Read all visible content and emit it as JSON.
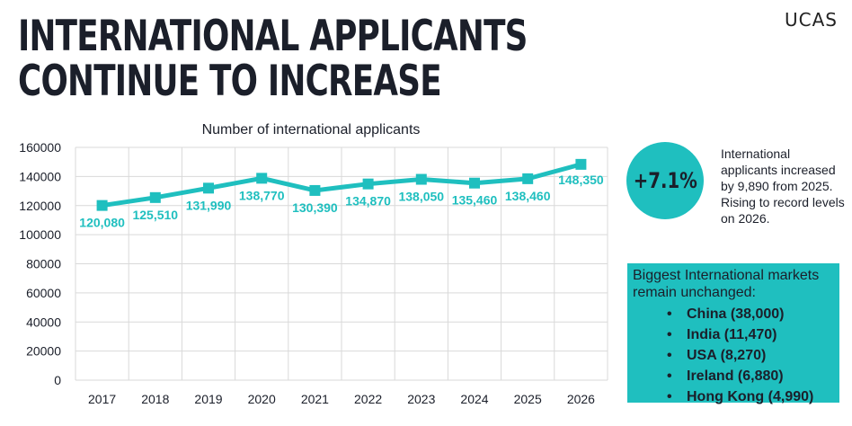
{
  "headline": "INTERNATIONAL APPLICANTS CONTINUE TO INCREASE",
  "logo": "UCAS",
  "chart_data": {
    "type": "line",
    "title": "Number of international applicants",
    "categories": [
      "2017",
      "2018",
      "2019",
      "2020",
      "2021",
      "2022",
      "2023",
      "2024",
      "2025",
      "2026"
    ],
    "values": [
      120080,
      125510,
      131990,
      138770,
      130390,
      134870,
      138050,
      135460,
      138460,
      148350
    ],
    "value_labels": [
      "120,080",
      "125,510",
      "131,990",
      "138,770",
      "130,390",
      "134,870",
      "138,050",
      "135,460",
      "138,460",
      "148,350"
    ],
    "ylim": [
      0,
      160000
    ],
    "yticks": [
      0,
      20000,
      40000,
      60000,
      80000,
      100000,
      120000,
      140000,
      160000
    ],
    "grid": true,
    "color": "#1fbfbf"
  },
  "stat": {
    "value": "+7.1%",
    "text": "International applicants increased by 9,890 from 2025. Rising to record levels on 2026."
  },
  "markets": {
    "title": "Biggest International markets remain unchanged:",
    "items": [
      "China (38,000)",
      "India (11,470)",
      "USA (8,270)",
      "Ireland (6,880)",
      "Hong Kong (4,990)"
    ]
  }
}
